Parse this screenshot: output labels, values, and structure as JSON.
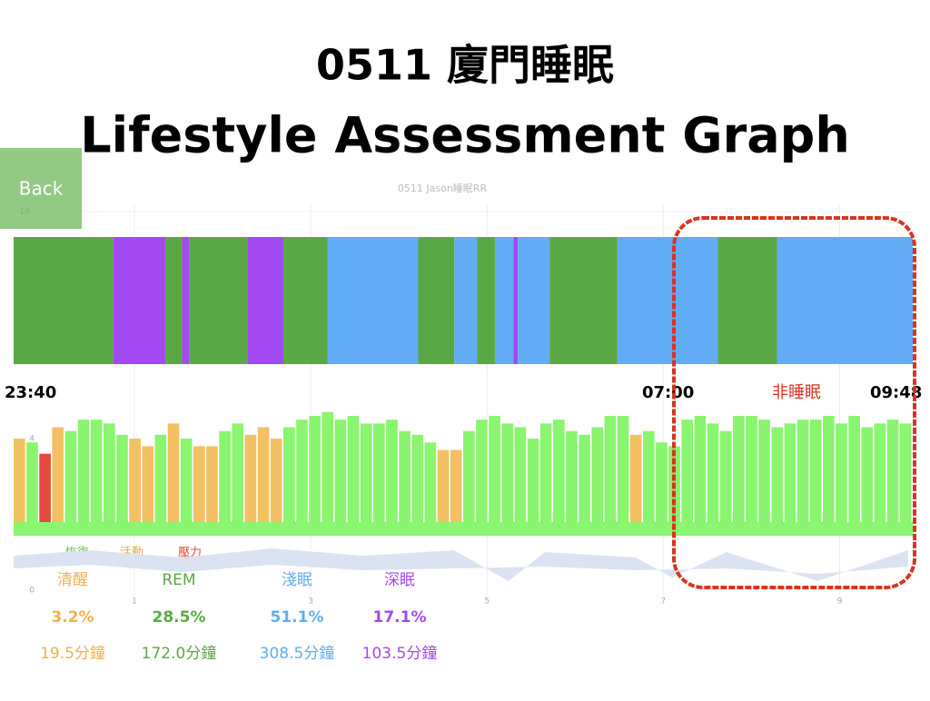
{
  "header": {
    "title_line1": "0511 廈門睡眠",
    "title_line2": "Lifestyle Assessment Graph"
  },
  "back_button": "Back",
  "chart_data": {
    "type": "sleep-stages",
    "title": "0511 Jason睡眠RR",
    "xlim": [
      -0.37,
      9.83
    ],
    "xticks": [
      1,
      3,
      5,
      7,
      9
    ],
    "ylim": [
      6,
      10
    ],
    "yticks": [
      6,
      7,
      8,
      9,
      10
    ],
    "stages": [
      {
        "name": "清醒",
        "color": "#f3b04e"
      },
      {
        "name": "REM",
        "color": "#5aa845"
      },
      {
        "name": "淺眠",
        "color": "#62acf5"
      },
      {
        "name": "深眠",
        "color": "#a349f2"
      }
    ],
    "segments": [
      {
        "start": -0.37,
        "end": 0.76,
        "stage": 1
      },
      {
        "start": 0.76,
        "end": 1.35,
        "stage": 3
      },
      {
        "start": 1.35,
        "end": 1.54,
        "stage": 1
      },
      {
        "start": 1.54,
        "end": 1.62,
        "stage": 3
      },
      {
        "start": 1.62,
        "end": 2.28,
        "stage": 1
      },
      {
        "start": 2.28,
        "end": 2.69,
        "stage": 3
      },
      {
        "start": 2.69,
        "end": 3.19,
        "stage": 1
      },
      {
        "start": 3.19,
        "end": 4.22,
        "stage": 2
      },
      {
        "start": 4.22,
        "end": 4.63,
        "stage": 1
      },
      {
        "start": 4.63,
        "end": 4.89,
        "stage": 2
      },
      {
        "start": 4.89,
        "end": 5.09,
        "stage": 1
      },
      {
        "start": 5.09,
        "end": 5.3,
        "stage": 2
      },
      {
        "start": 5.3,
        "end": 5.35,
        "stage": 3
      },
      {
        "start": 5.35,
        "end": 5.71,
        "stage": 2
      },
      {
        "start": 5.71,
        "end": 6.48,
        "stage": 1
      },
      {
        "start": 6.48,
        "end": 7.62,
        "stage": 2
      },
      {
        "start": 7.62,
        "end": 8.29,
        "stage": 1
      },
      {
        "start": 8.29,
        "end": 9.83,
        "stage": 2
      }
    ],
    "time_labels": [
      "23:40",
      "07:00",
      "09:48"
    ],
    "annotation": "非睡眠",
    "hrv": {
      "ylim": [
        0,
        5
      ],
      "yticks": [
        0,
        2,
        4
      ],
      "types": [
        {
          "name": "恢復",
          "color": "#8af56e"
        },
        {
          "name": "活動",
          "color": "#f3c063"
        },
        {
          "name": "壓力",
          "color": "#e4493f"
        }
      ],
      "values": [
        4.0,
        3.9,
        3.6,
        4.3,
        4.2,
        4.5,
        4.5,
        4.4,
        4.1,
        4.0,
        3.8,
        4.1,
        4.4,
        4.0,
        3.8,
        3.8,
        4.2,
        4.4,
        4.1,
        4.3,
        4.0,
        4.3,
        4.5,
        4.6,
        4.7,
        4.5,
        4.6,
        4.4,
        4.4,
        4.5,
        4.2,
        4.1,
        3.9,
        3.7,
        3.7,
        4.2,
        4.5,
        4.6,
        4.4,
        4.3,
        4.0,
        4.4,
        4.5,
        4.2,
        4.1,
        4.3,
        4.6,
        4.6,
        4.1,
        4.2,
        3.9,
        3.8,
        4.5,
        4.6,
        4.4,
        4.2,
        4.6,
        4.6,
        4.5,
        4.3,
        4.4,
        4.5,
        4.5,
        4.6,
        4.4,
        4.6,
        4.3,
        4.4,
        4.5,
        4.4
      ],
      "bar_types": [
        1,
        0,
        2,
        1,
        0,
        0,
        0,
        0,
        0,
        1,
        1,
        0,
        1,
        0,
        1,
        1,
        0,
        0,
        1,
        1,
        1,
        0,
        0,
        0,
        0,
        0,
        0,
        0,
        0,
        0,
        0,
        0,
        0,
        1,
        1,
        0,
        0,
        0,
        0,
        0,
        0,
        0,
        0,
        0,
        0,
        0,
        0,
        0,
        1,
        0,
        0,
        0,
        0,
        0,
        0,
        0,
        0,
        0,
        0,
        0,
        0,
        0,
        0,
        0,
        0,
        0,
        0,
        0,
        0,
        0
      ]
    }
  },
  "summary": {
    "percentages": [
      "3.2%",
      "28.5%",
      "51.1%",
      "17.1%"
    ],
    "durations": [
      "19.5分鐘",
      "172.0分鐘",
      "308.5分鐘",
      "103.5分鐘"
    ]
  }
}
